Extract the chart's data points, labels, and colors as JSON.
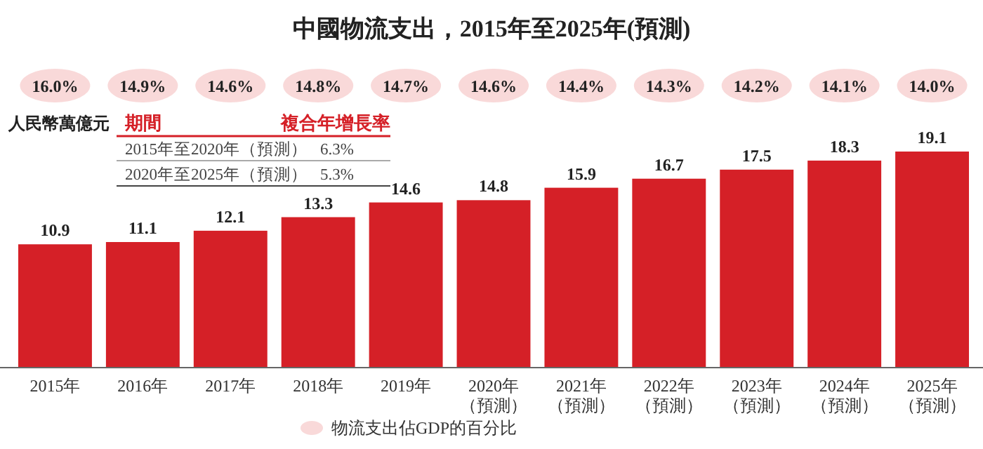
{
  "chart_data": [
    {
      "type": "other",
      "legend": "bottom",
      "categories": [
        null,
        null,
        null,
        null,
        null,
        null,
        null,
        null,
        null,
        null,
        null
      ],
      "series": [
        {
          "name": "物流支出佔GDP的百分比",
          "color": "#f9d9d9",
          "values": [
            16.0,
            14.9,
            14.6,
            14.8,
            14.7,
            14.6,
            14.4,
            14.3,
            14.2,
            14.1,
            14.0
          ],
          "value_labels": [
            "16.0%",
            "14.9%",
            "14.6%",
            "14.8%",
            "14.7%",
            "14.6%",
            "14.4%",
            "14.3%",
            "14.2%",
            "14.1%",
            "14.0%"
          ]
        }
      ]
    },
    {
      "type": "bar",
      "title": "中國物流支出，2015年至2025年(預測)",
      "ylabel": "人民幣萬億元",
      "data_labels": true,
      "categories": [
        "2015年",
        "2016年",
        "2017年",
        "2018年",
        "2019年",
        "2020年（預測）",
        "2021年（預測）",
        "2022年（預測）",
        "2023年（預測）",
        "2024年（預測）",
        "2025年（預測）"
      ],
      "series": [
        {
          "color": "#d52027",
          "values": [
            10.9,
            11.1,
            12.1,
            13.3,
            14.6,
            14.8,
            15.9,
            16.7,
            17.5,
            18.3,
            19.1
          ]
        }
      ],
      "annotations": [
        "期間",
        "複合年增長率",
        "2015年至2020年（預測）",
        "6.3%",
        "2020年至2025年（預測）",
        "5.3%"
      ]
    }
  ]
}
